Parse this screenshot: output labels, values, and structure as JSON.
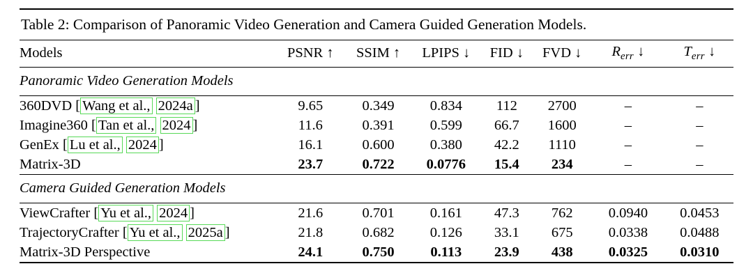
{
  "caption": "Table 2: Comparison of Panoramic Video Generation and Camera Guided Generation Models.",
  "columns": [
    {
      "label": "Models",
      "align": "left"
    },
    {
      "label": "PSNR",
      "arrow": "↑",
      "math": false
    },
    {
      "label": "SSIM",
      "arrow": "↑",
      "math": false
    },
    {
      "label": "LPIPS",
      "arrow": "↓",
      "math": false
    },
    {
      "label": "FID",
      "arrow": "↓",
      "math": false
    },
    {
      "label": "FVD",
      "arrow": "↓",
      "math": false
    },
    {
      "label": "R",
      "sub": "err",
      "arrow": "↓",
      "math": true
    },
    {
      "label": "T",
      "sub": "err",
      "arrow": "↓",
      "math": true
    }
  ],
  "sections": [
    {
      "title": "Panoramic Video Generation Models",
      "rows": [
        {
          "model": "360DVD",
          "citation": {
            "authors": "Wang et al.,",
            "year": "2024a"
          },
          "values": [
            "9.65",
            "0.349",
            "0.834",
            "112",
            "2700",
            "–",
            "–"
          ],
          "bold_values": false
        },
        {
          "model": "Imagine360",
          "citation": {
            "authors": "Tan et al.,",
            "year": "2024"
          },
          "values": [
            "11.6",
            "0.391",
            "0.599",
            "66.7",
            "1600",
            "–",
            "–"
          ],
          "bold_values": false
        },
        {
          "model": "GenEx",
          "citation": {
            "authors": "Lu et al.,",
            "year": "2024"
          },
          "values": [
            "16.1",
            "0.600",
            "0.380",
            "42.2",
            "1110",
            "–",
            "–"
          ],
          "bold_values": false
        },
        {
          "model": "Matrix-3D",
          "citation": null,
          "values": [
            "23.7",
            "0.722",
            "0.0776",
            "15.4",
            "234",
            "–",
            "–"
          ],
          "bold_values": true
        }
      ]
    },
    {
      "title": "Camera Guided Generation Models",
      "rows": [
        {
          "model": "ViewCrafter",
          "citation": {
            "authors": "Yu et al.,",
            "year": "2024"
          },
          "values": [
            "21.6",
            "0.701",
            "0.161",
            "47.3",
            "762",
            "0.0940",
            "0.0453"
          ],
          "bold_values": false
        },
        {
          "model": "TrajectoryCrafter",
          "citation": {
            "authors": "Yu et al.,",
            "year": "2025a"
          },
          "values": [
            "21.8",
            "0.682",
            "0.126",
            "33.1",
            "675",
            "0.0338",
            "0.0488"
          ],
          "bold_values": false
        },
        {
          "model": "Matrix-3D Perspective",
          "citation": null,
          "values": [
            "24.1",
            "0.750",
            "0.113",
            "23.9",
            "438",
            "0.0325",
            "0.0310"
          ],
          "bold_values": true
        }
      ]
    }
  ],
  "colors": {
    "citation_box": "#57d957",
    "text": "#000000",
    "background": "#ffffff"
  }
}
